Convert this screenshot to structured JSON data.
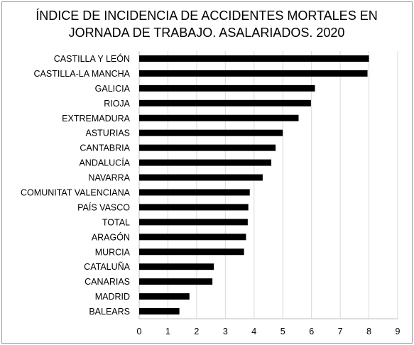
{
  "chart_data": {
    "type": "bar",
    "orientation": "horizontal",
    "title_lines": [
      "ÍNDICE DE INCIDENCIA DE ACCIDENTES MORTALES EN",
      "JORNADA DE TRABAJO. ASALARIADOS. 2020"
    ],
    "categories": [
      "CASTILLA Y LEÓN",
      "CASTILLA-LA MANCHA",
      "GALICIA",
      "RIOJA",
      "EXTREMADURA",
      "ASTURIAS",
      "CANTABRIA",
      "ANDALUCÍA",
      "NAVARRA",
      "COMUNITAT VALENCIANA",
      "PAÍS VASCO",
      "TOTAL",
      "ARAGÓN",
      "MURCIA",
      "CATALUÑA",
      "CANARIAS",
      "MADRID",
      "BALEARS"
    ],
    "values": [
      8.0,
      7.95,
      6.12,
      5.98,
      5.55,
      5.0,
      4.75,
      4.6,
      4.3,
      3.85,
      3.8,
      3.78,
      3.72,
      3.65,
      2.6,
      2.55,
      1.75,
      1.4
    ],
    "xlim": [
      0,
      9
    ],
    "xticks": [
      "0",
      "1",
      "2",
      "3",
      "4",
      "5",
      "6",
      "7",
      "8",
      "9"
    ],
    "grid": "vertical",
    "bar_color": "#000000",
    "grid_color": "#d9d9d9"
  }
}
